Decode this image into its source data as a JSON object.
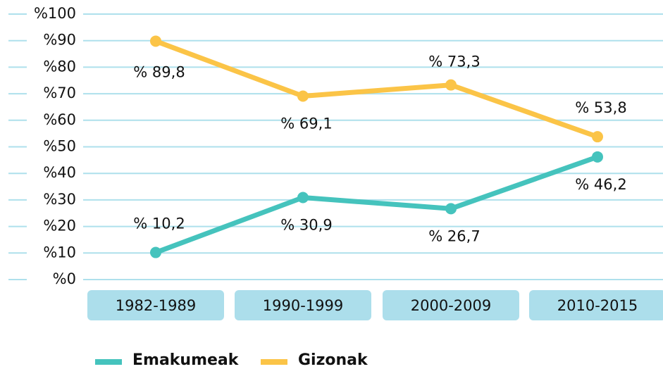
{
  "chart_data": {
    "type": "line",
    "categories": [
      "1982-1989",
      "1990-1999",
      "2000-2009",
      "2010-2015"
    ],
    "series": [
      {
        "name": "Emakumeak",
        "color": "#45c3bd",
        "values": [
          10.2,
          30.9,
          26.7,
          46.2
        ],
        "value_labels": [
          "% 10,2",
          "% 30,9",
          "% 26,7",
          "% 46,2"
        ]
      },
      {
        "name": "Gizonak",
        "color": "#fbc447",
        "values": [
          89.8,
          69.1,
          73.3,
          53.8
        ],
        "value_labels": [
          "% 89,8",
          "% 69,1",
          "% 73,3",
          "% 53,8"
        ]
      }
    ],
    "ylim": [
      0,
      100
    ],
    "yticks": [
      {
        "value": 0,
        "label": "%0"
      },
      {
        "value": 10,
        "label": "%10"
      },
      {
        "value": 20,
        "label": "%20"
      },
      {
        "value": 30,
        "label": "%30"
      },
      {
        "value": 40,
        "label": "%40"
      },
      {
        "value": 50,
        "label": "%50"
      },
      {
        "value": 60,
        "label": "%60"
      },
      {
        "value": 70,
        "label": "%70"
      },
      {
        "value": 80,
        "label": "%80"
      },
      {
        "value": 90,
        "label": "%90"
      },
      {
        "value": 100,
        "label": "%100"
      }
    ],
    "grid": true,
    "legend": "bottom",
    "category_box_color": "#acdeeb"
  }
}
